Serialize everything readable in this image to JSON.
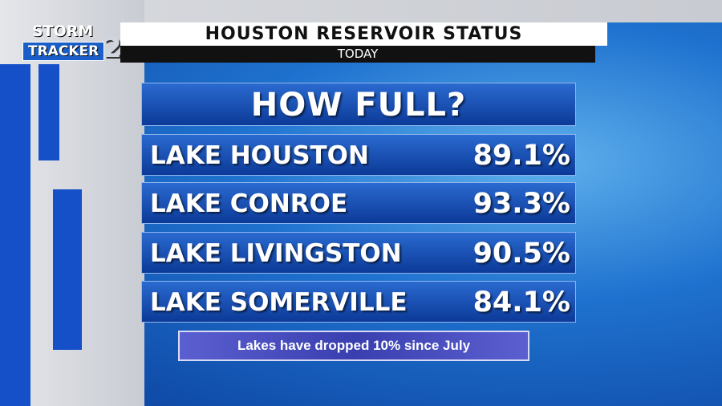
{
  "header": {
    "logo": {
      "line1": "STORM",
      "line2": "TRACKER",
      "number": "2"
    },
    "title": "HOUSTON RESERVOIR STATUS",
    "subtitle": "TODAY"
  },
  "panel": {
    "heading": "HOW FULL?",
    "rows": [
      {
        "name": "LAKE HOUSTON",
        "value": "89.1%"
      },
      {
        "name": "LAKE CONROE",
        "value": "93.3%"
      },
      {
        "name": "LAKE LIVINGSTON",
        "value": "90.5%"
      },
      {
        "name": "LAKE SOMERVILLE",
        "value": "84.1%"
      }
    ]
  },
  "footer": {
    "note": "Lakes have dropped 10% since July"
  }
}
